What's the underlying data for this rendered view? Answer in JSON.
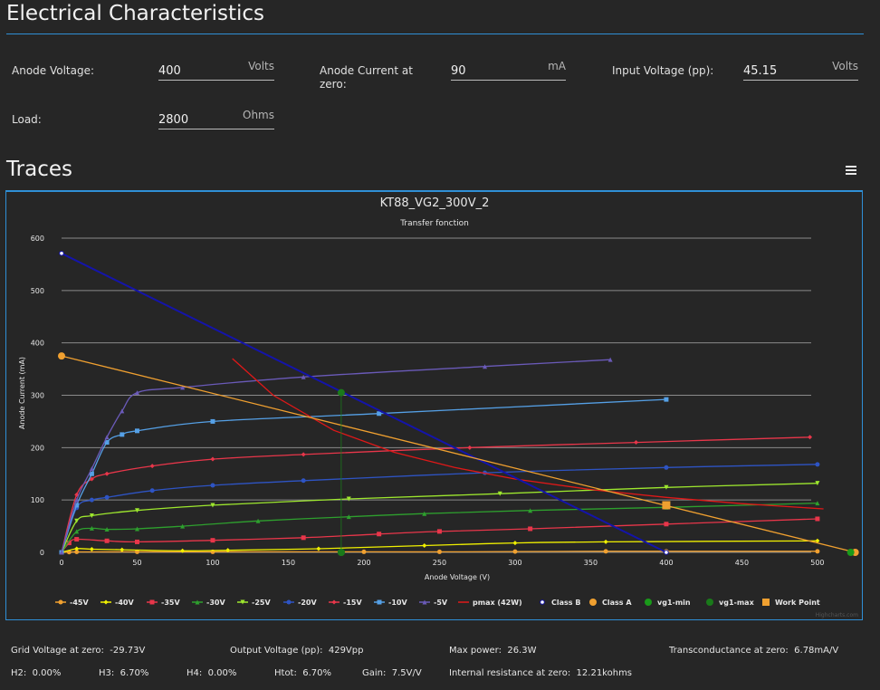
{
  "page": {
    "heading": "Electrical Characteristics",
    "traces_heading": "Traces"
  },
  "fields": {
    "anode_voltage": {
      "label": "Anode Voltage:",
      "value": "400",
      "unit": "Volts"
    },
    "anode_current": {
      "label": "Anode Current at zero:",
      "value": "90",
      "unit": "mA"
    },
    "input_voltage": {
      "label": "Input Voltage (pp):",
      "value": "45.15",
      "unit": "Volts"
    },
    "load": {
      "label": "Load:",
      "value": "2800",
      "unit": "Ohms"
    }
  },
  "stats": {
    "grid_voltage": {
      "label": "Grid Voltage at zero:",
      "value": "-29.73V"
    },
    "output_voltage": {
      "label": "Output Voltage (pp):",
      "value": "429Vpp"
    },
    "max_power": {
      "label": "Max power:",
      "value": "26.3W"
    },
    "transconductance": {
      "label": "Transconductance at zero:",
      "value": "6.78mA/V"
    },
    "h2": {
      "label": "H2:",
      "value": "0.00%"
    },
    "h3": {
      "label": "H3:",
      "value": "6.70%"
    },
    "h4": {
      "label": "H4:",
      "value": "0.00%"
    },
    "htot": {
      "label": "Htot:",
      "value": "6.70%"
    },
    "gain": {
      "label": "Gain:",
      "value": "7.5V/V"
    },
    "internal_resistance": {
      "label": "Internal resistance at zero:",
      "value": "12.21kohms"
    }
  },
  "chart_data": {
    "type": "line",
    "title": "KT88_VG2_300V_2",
    "subtitle": "Transfer fonction",
    "xlabel": "Anode Voltage (V)",
    "ylabel": "Anode Current (mA)",
    "xlim": [
      0,
      530
    ],
    "ylim": [
      0,
      600
    ],
    "xticks": [
      0,
      50,
      100,
      150,
      200,
      250,
      300,
      350,
      400,
      450,
      500
    ],
    "yticks": [
      0,
      100,
      200,
      300,
      400,
      500,
      600
    ],
    "grid": "horizontal",
    "legend_position": "bottom",
    "credit": "Highcharts.com",
    "series": [
      {
        "name": "-45V",
        "color": "#f0a030",
        "marker": "circle",
        "x": [
          0,
          5,
          10,
          50,
          100,
          200,
          250,
          300,
          360,
          400,
          500
        ],
        "y": [
          0,
          0.5,
          0.8,
          1,
          1,
          1,
          1,
          1.5,
          2,
          2,
          2
        ]
      },
      {
        "name": "-40V",
        "color": "#f0f000",
        "marker": "diamond",
        "x": [
          0,
          10,
          20,
          40,
          80,
          110,
          170,
          240,
          300,
          360,
          500
        ],
        "y": [
          0,
          7,
          6,
          5,
          3,
          4,
          7,
          13,
          18,
          20,
          22
        ]
      },
      {
        "name": "-35V",
        "color": "#e8364a",
        "marker": "square",
        "x": [
          0,
          5,
          10,
          30,
          50,
          100,
          160,
          210,
          250,
          310,
          400,
          500
        ],
        "y": [
          0,
          18,
          25,
          22,
          20,
          23,
          28,
          35,
          40,
          45,
          54,
          64
        ]
      },
      {
        "name": "-30V",
        "color": "#2ea02e",
        "marker": "triangle",
        "x": [
          0,
          10,
          20,
          30,
          50,
          80,
          130,
          190,
          240,
          310,
          400,
          500
        ],
        "y": [
          0,
          40,
          46,
          44,
          45,
          50,
          60,
          68,
          74,
          80,
          86,
          94
        ]
      },
      {
        "name": "-25V",
        "color": "#9ee82e",
        "marker": "triangle-down",
        "x": [
          0,
          10,
          20,
          50,
          100,
          190,
          290,
          400,
          500
        ],
        "y": [
          0,
          60,
          70,
          80,
          90,
          102,
          112,
          124,
          132
        ]
      },
      {
        "name": "-20V",
        "color": "#2e54c4",
        "marker": "circle",
        "x": [
          0,
          10,
          20,
          30,
          60,
          100,
          160,
          280,
          400,
          500
        ],
        "y": [
          0,
          85,
          100,
          105,
          118,
          128,
          137,
          152,
          162,
          168
        ]
      },
      {
        "name": "-15V",
        "color": "#e8364a",
        "marker": "diamond",
        "x": [
          0,
          10,
          20,
          30,
          60,
          100,
          160,
          270,
          380,
          495
        ],
        "y": [
          0,
          110,
          140,
          150,
          165,
          178,
          187,
          200,
          210,
          220
        ]
      },
      {
        "name": "-10V",
        "color": "#55a0e6",
        "marker": "square",
        "x": [
          0,
          10,
          20,
          30,
          40,
          50,
          100,
          210,
          400
        ],
        "y": [
          0,
          90,
          150,
          210,
          225,
          232,
          250,
          265,
          292
        ]
      },
      {
        "name": "-5V",
        "color": "#6a5ab8",
        "marker": "triangle",
        "x": [
          0,
          10,
          20,
          30,
          40,
          50,
          80,
          160,
          280,
          363
        ],
        "y": [
          0,
          100,
          160,
          220,
          270,
          305,
          315,
          335,
          355,
          368
        ]
      },
      {
        "name": "pmax (42W)",
        "color": "#e01818",
        "marker": "none",
        "x": [
          113,
          140,
          180,
          220,
          260,
          300,
          350,
          400,
          450,
          504
        ],
        "y": [
          370,
          300,
          233,
          191,
          162,
          140,
          120,
          105,
          93,
          83
        ]
      },
      {
        "name": "Class B",
        "color": "#1414aa",
        "marker": "hollow-circle",
        "x": [
          0,
          400
        ],
        "y": [
          571,
          0
        ]
      },
      {
        "name": "Class A",
        "color": "#f0a030",
        "marker": "circle",
        "x": [
          0,
          525
        ],
        "y": [
          375,
          0
        ]
      },
      {
        "name": "vg1-min",
        "color": "#1a9a1a",
        "marker": "circle",
        "x": [
          185,
          522
        ],
        "y": [
          0,
          0
        ]
      },
      {
        "name": "vg1-max",
        "color": "#1a7a1a",
        "marker": "circle",
        "x": [
          185,
          185
        ],
        "y": [
          0,
          305
        ]
      },
      {
        "name": "Work Point",
        "color": "#f0a030",
        "marker": "square",
        "x": [
          400
        ],
        "y": [
          90
        ]
      }
    ]
  }
}
